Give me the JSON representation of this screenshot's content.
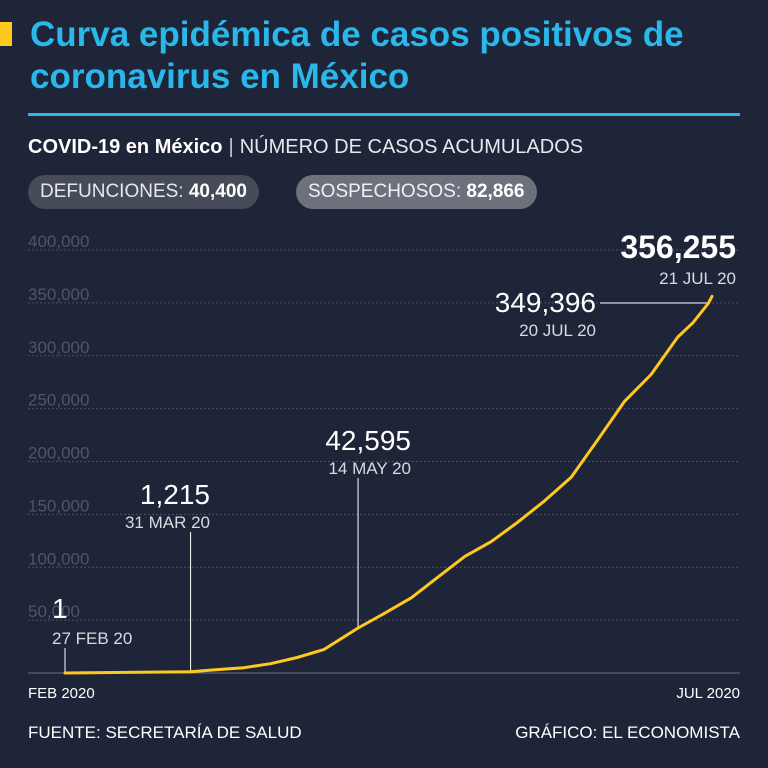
{
  "header": {
    "title": "Curva epidémica de casos positivos de coronavirus en México",
    "subtitle_strong": "COVID-19 en México",
    "subtitle_separator": "|",
    "subtitle_rest": "NÚMERO DE CASOS ACUMULADOS"
  },
  "badges": {
    "deaths_label": "DEFUNCIONES:",
    "deaths_value": "40,400",
    "suspected_label": "SOSPECHOSOS:",
    "suspected_value": "82,866"
  },
  "colors": {
    "background": "#1e2538",
    "title_blue": "#2ab7ea",
    "line_yellow": "#ffc81f",
    "grid": "#4a5166"
  },
  "chart_data": {
    "type": "line",
    "title": "NÚMERO DE CASOS ACUMULADOS",
    "xlabel": "",
    "ylabel": "",
    "ylim": [
      0,
      400000
    ],
    "grid": true,
    "y_ticks": [
      {
        "value": 50000,
        "label": "50,000"
      },
      {
        "value": 100000,
        "label": "100,000"
      },
      {
        "value": 150000,
        "label": "150,000"
      },
      {
        "value": 200000,
        "label": "200,000"
      },
      {
        "value": 250000,
        "label": "250,000"
      },
      {
        "value": 300000,
        "label": "300,000"
      },
      {
        "value": 350000,
        "label": "350,000"
      },
      {
        "value": 400000,
        "label": "400,000"
      }
    ],
    "x_start_label": "FEB 2020",
    "x_end_label": "JUL 2020",
    "x_range_days": [
      0,
      145
    ],
    "series": [
      {
        "name": "Casos acumulados",
        "points": [
          [
            0,
            1
          ],
          [
            33,
            1215
          ],
          [
            40,
            3181
          ],
          [
            47,
            5014
          ],
          [
            54,
            8772
          ],
          [
            61,
            14677
          ],
          [
            68,
            22088
          ],
          [
            77,
            42595
          ],
          [
            84,
            56594
          ],
          [
            91,
            71105
          ],
          [
            98,
            90664
          ],
          [
            105,
            110026
          ],
          [
            112,
            124301
          ],
          [
            119,
            142690
          ],
          [
            126,
            162699
          ],
          [
            133,
            185122
          ],
          [
            140,
            220657
          ],
          [
            147,
            256848
          ],
          [
            154,
            282283
          ],
          [
            161,
            317635
          ],
          [
            165,
            331298
          ],
          [
            169,
            349396
          ],
          [
            170,
            356255
          ]
        ]
      }
    ],
    "annotations": [
      {
        "value": "1",
        "date": "27 FEB 20",
        "day": 0,
        "cases": 1
      },
      {
        "value": "1,215",
        "date": "31 MAR 20",
        "day": 33,
        "cases": 1215
      },
      {
        "value": "42,595",
        "date": "14 MAY 20",
        "day": 77,
        "cases": 42595
      },
      {
        "value": "349,396",
        "date": "20 JUL 20",
        "day": 169,
        "cases": 349396
      },
      {
        "value": "356,255",
        "date": "21 JUL 20",
        "day": 170,
        "cases": 356255
      }
    ]
  },
  "footer": {
    "source": "FUENTE: SECRETARÍA DE SALUD",
    "credit": "GRÁFICO: EL ECONOMISTA"
  }
}
